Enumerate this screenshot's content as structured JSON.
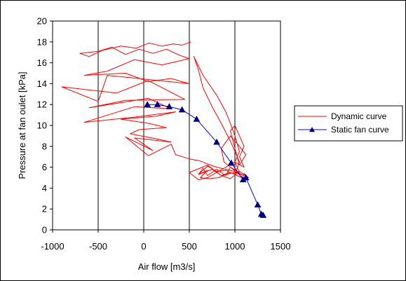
{
  "chart_data": {
    "type": "line",
    "xlabel": "Air flow  [m3/s]",
    "ylabel": "Pressure at fan oulet  [kPa]",
    "xlim": [
      -1000,
      1500
    ],
    "ylim": [
      0,
      20
    ],
    "xticks": [
      -1000,
      -500,
      0,
      500,
      1000,
      1500
    ],
    "yticks": [
      0,
      2,
      4,
      6,
      8,
      10,
      12,
      14,
      16,
      18,
      20
    ],
    "xtick_labels": [
      "-1000",
      "-500",
      "0",
      "500",
      "1000",
      "1500"
    ],
    "ytick_labels": [
      "0",
      "2",
      "4",
      "6",
      "8",
      "10",
      "12",
      "14",
      "16",
      "18",
      "20"
    ],
    "grid": "x-major lines only",
    "legend_position": "right",
    "series": [
      {
        "name": "Dynamic curve",
        "color": "#ff0000",
        "marker": "none",
        "x": [
          520,
          420,
          320,
          200,
          60,
          -80,
          -250,
          -450,
          -600,
          -700,
          -500,
          -350,
          -200,
          -50,
          100,
          250,
          400,
          500,
          200,
          -100,
          -400,
          -650,
          -200,
          50,
          300,
          500,
          -400,
          -500,
          -900,
          -300,
          50,
          450,
          -200,
          -600,
          50,
          300,
          -100,
          -650,
          -100,
          350,
          150,
          -250,
          50,
          250,
          -50,
          -150,
          150,
          300,
          -100,
          100,
          -200,
          50,
          300,
          350,
          500,
          620,
          700,
          800,
          900,
          1000,
          1050,
          1100,
          1000,
          900,
          820,
          720,
          620,
          700,
          600,
          750,
          850,
          950,
          1050,
          1100,
          980,
          880,
          850,
          950,
          1050,
          1120,
          1050,
          1000,
          950,
          1000,
          1050,
          1100,
          1050,
          1100,
          1000,
          1050,
          950,
          900,
          800,
          700,
          650,
          600,
          700,
          800,
          900,
          1000,
          1050,
          950,
          850,
          750,
          650,
          600,
          550,
          650,
          800,
          900,
          950,
          1000,
          1050,
          1000,
          900,
          800,
          700,
          600,
          500,
          700,
          850,
          950,
          1050,
          1100,
          1150,
          1100,
          1080,
          1120
        ],
        "y": [
          18.0,
          17.7,
          17.8,
          17.6,
          17.9,
          17.4,
          17.6,
          17.2,
          16.6,
          16.9,
          17.1,
          17.5,
          16.8,
          17.3,
          16.9,
          17.3,
          16.7,
          16.4,
          15.8,
          16.3,
          15.2,
          14.8,
          15.0,
          14.2,
          14.5,
          14.0,
          14.8,
          12.3,
          13.7,
          13.1,
          14.3,
          12.5,
          12.4,
          11.7,
          12.6,
          11.6,
          11.8,
          10.3,
          10.8,
          11.3,
          10.9,
          10.6,
          10.2,
          9.8,
          9.6,
          9.2,
          8.7,
          8.4,
          8.8,
          7.6,
          8.9,
          7.1,
          8.2,
          7.2,
          6.8,
          6.6,
          6.3,
          6.0,
          5.8,
          5.6,
          5.4,
          5.2,
          5.5,
          5.3,
          5.0,
          4.9,
          5.0,
          5.7,
          5.3,
          5.8,
          5.2,
          5.5,
          5.1,
          4.9,
          5.8,
          6.5,
          7.8,
          9.0,
          8.0,
          7.2,
          6.2,
          7.8,
          9.5,
          10.0,
          9.0,
          8.0,
          7.0,
          6.0,
          6.5,
          5.5,
          6.0,
          5.2,
          5.8,
          5.2,
          5.9,
          5.3,
          6.1,
          5.6,
          5.7,
          5.3,
          6.5,
          8.5,
          10.2,
          11.8,
          13.6,
          15.3,
          16.6,
          14.8,
          12.9,
          11.3,
          10.2,
          9.0,
          7.5,
          6.5,
          6.0,
          5.5,
          5.0,
          4.8,
          5.5,
          6.2,
          5.2,
          4.9,
          5.6,
          5.3,
          5.0,
          5.4,
          4.8,
          5.1
        ]
      },
      {
        "name": "Static fan curve",
        "color": "#0000cc",
        "marker": "triangle",
        "marker_color": "#000080",
        "x": [
          40,
          150,
          280,
          420,
          580,
          800,
          960,
          1090,
          1120,
          1250,
          1290,
          1310
        ],
        "y": [
          12.0,
          12.0,
          11.8,
          11.5,
          10.6,
          8.4,
          6.4,
          4.8,
          5.0,
          2.4,
          1.5,
          1.4
        ]
      }
    ]
  }
}
